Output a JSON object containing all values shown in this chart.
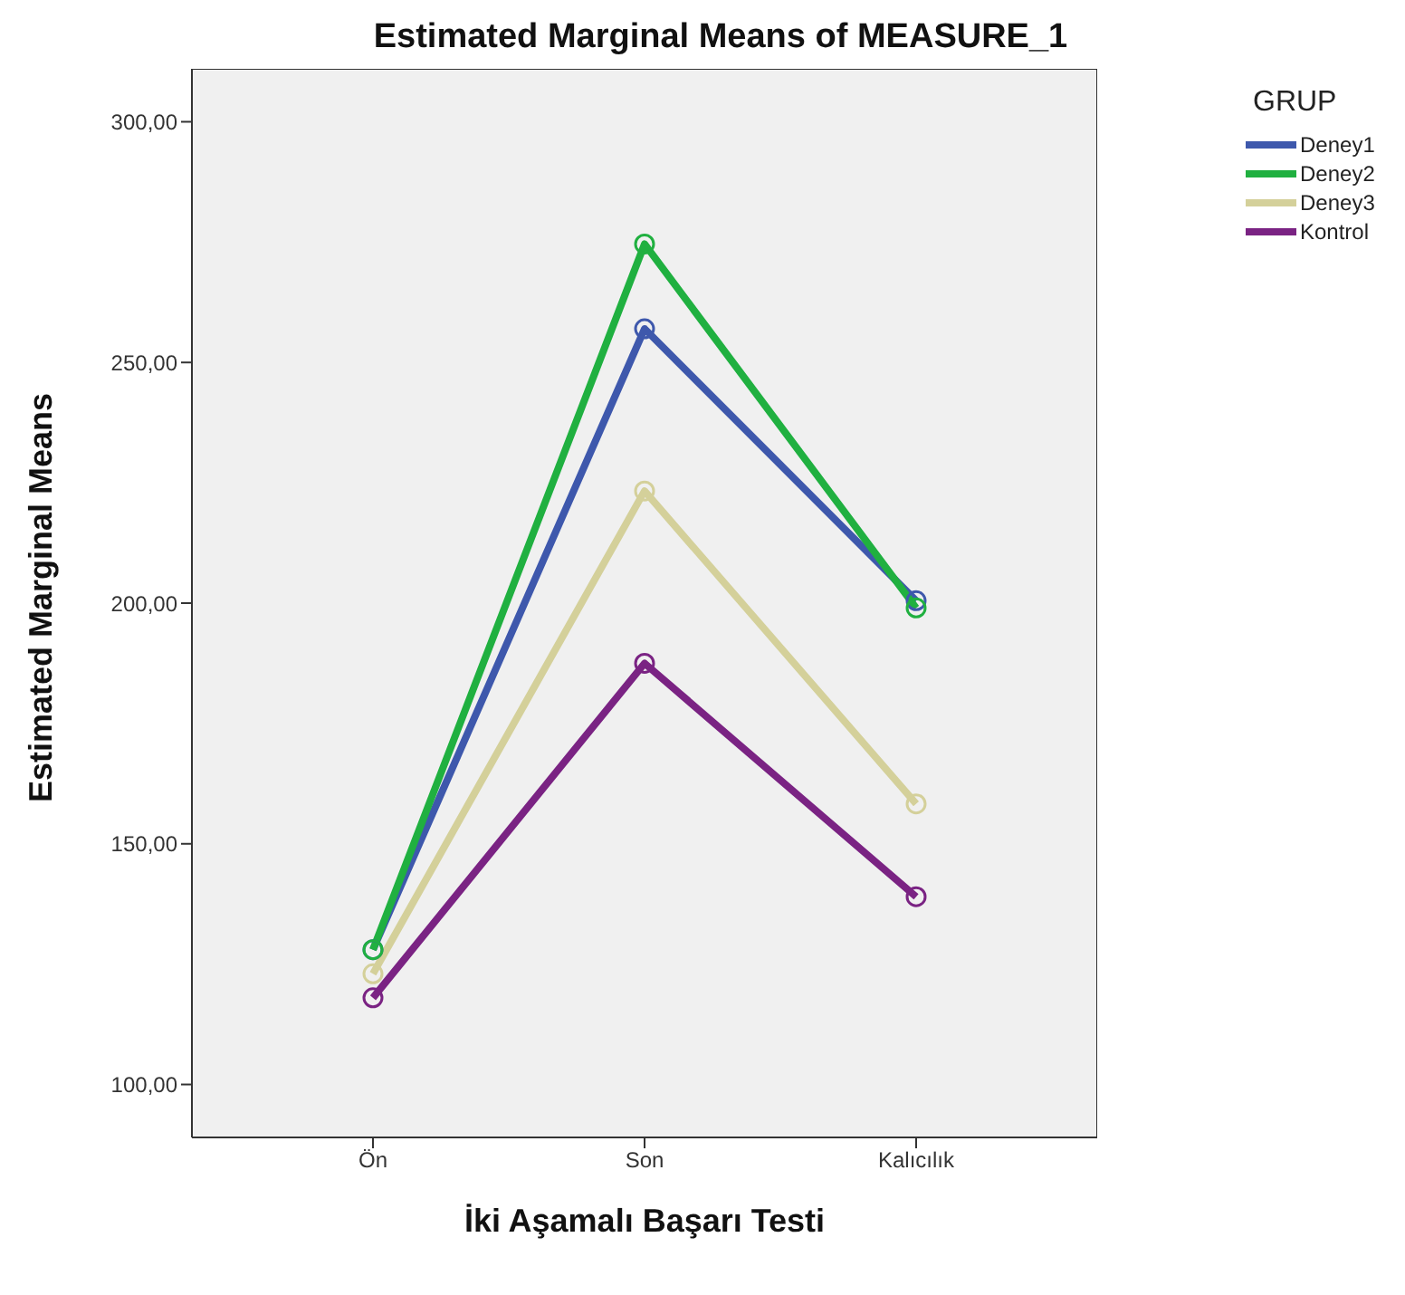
{
  "chart_data": {
    "type": "line",
    "title": "Estimated Marginal Means of MEASURE_1",
    "xlabel": "İki Aşamalı Başarı Testi",
    "ylabel": "Estimated Marginal Means",
    "legend_title": "GRUP",
    "categories": [
      "Ön",
      "Son",
      "Kalıcılık"
    ],
    "series": [
      {
        "name": "Deney1",
        "color": "#3e58ac",
        "values": [
          128,
          257,
          200.5
        ]
      },
      {
        "name": "Deney2",
        "color": "#20b040",
        "values": [
          128,
          274.6,
          199
        ]
      },
      {
        "name": "Deney3",
        "color": "#d4d09a",
        "values": [
          123,
          223.3,
          158.3
        ]
      },
      {
        "name": "Kontrol",
        "color": "#7a2383",
        "values": [
          118,
          187.5,
          139
        ]
      }
    ],
    "ylim": [
      89,
      311
    ],
    "yticks": [
      {
        "value": 100,
        "label": "100,00"
      },
      {
        "value": 150,
        "label": "150,00"
      },
      {
        "value": 200,
        "label": "200,00"
      },
      {
        "value": 250,
        "label": "250,00"
      },
      {
        "value": 300,
        "label": "300,00"
      }
    ],
    "grid": false,
    "legend": "top right",
    "marker": "circle",
    "line_style": "solid"
  }
}
